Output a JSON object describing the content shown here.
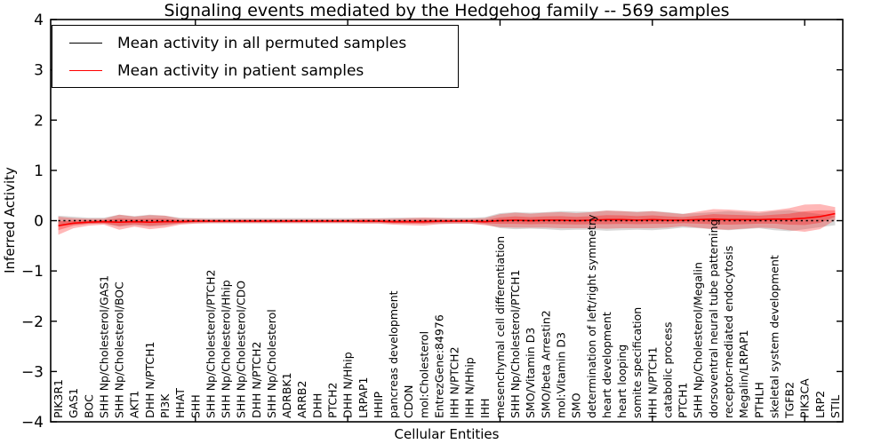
{
  "chart_data": {
    "type": "line",
    "title": "Signaling events mediated by the Hedgehog family -- 569 samples",
    "xlabel": "Cellular Entities",
    "ylabel": "Inferred Activity",
    "ylim": [
      -4,
      4
    ],
    "yticks": [
      -4,
      -3,
      -2,
      -1,
      0,
      1,
      2,
      3,
      4
    ],
    "x_major_tick_indices": [
      9,
      19,
      29,
      39,
      49
    ],
    "grid": false,
    "legend_position": "upper left",
    "categories": [
      "PIK3R1",
      "GAS1",
      "BOC",
      "SHH Np/Cholesterol/GAS1",
      "SHH Np/Cholesterol/BOC",
      "AKT1",
      "DHH N/PTCH1",
      "PI3K",
      "HHAT",
      "SHH",
      "SHH Np/Cholesterol/PTCH2",
      "SHH Np/Cholesterol/Hhip",
      "SHH Np/Cholesterol/CDO",
      "DHH N/PTCH2",
      "SHH Np/Cholesterol",
      "ADRBK1",
      "ARRB2",
      "DHH",
      "PTCH2",
      "DHH N/Hhip",
      "LRPAP1",
      "HHIP",
      "pancreas development",
      "CDON",
      "mol:Cholesterol",
      "EntrezGene:84976",
      "IHH N/PTCH2",
      "IHH N/Hhip",
      "IHH",
      "mesenchymal cell differentiation",
      "SHH Np/Cholesterol/PTCH1",
      "SMO/Vitamin D3",
      "SMO/beta Arrestin2",
      "mol:Vitamin D3",
      "SMO",
      "determination of left/right symmetry",
      "heart development",
      "heart looping",
      "somite specification",
      "IHH N/PTCH1",
      "catabolic process",
      "PTCH1",
      "SHH Np/Cholesterol/Megalin",
      "dorsoventral neural tube patterning",
      "receptor-mediated endocytosis",
      "Megalin/LRPAP1",
      "PTHLH",
      "skeletal system development",
      "TGFB2",
      "PIK3CA",
      "LRP2",
      "STIL"
    ],
    "series": [
      {
        "name": "Mean activity in all permuted samples",
        "color": "#000000",
        "band_color": "#999999",
        "values": [
          0,
          0,
          0,
          0,
          0,
          0,
          0,
          0,
          0,
          0,
          0,
          0,
          0,
          0,
          0,
          0,
          0,
          0,
          0,
          0,
          0,
          0,
          0,
          0,
          0,
          0,
          0,
          0,
          0,
          0,
          0,
          0,
          0,
          0,
          0,
          0,
          0,
          0,
          0,
          0,
          0,
          0,
          0,
          0,
          0,
          0,
          0,
          0,
          0,
          0,
          0,
          0
        ],
        "band": [
          0.1,
          0.08,
          0.06,
          0.06,
          0.12,
          0.09,
          0.12,
          0.1,
          0.06,
          0.05,
          0.05,
          0.05,
          0.05,
          0.05,
          0.05,
          0.05,
          0.05,
          0.05,
          0.05,
          0.05,
          0.05,
          0.05,
          0.06,
          0.06,
          0.06,
          0.06,
          0.06,
          0.06,
          0.07,
          0.15,
          0.17,
          0.16,
          0.17,
          0.19,
          0.18,
          0.18,
          0.2,
          0.19,
          0.18,
          0.19,
          0.17,
          0.14,
          0.15,
          0.17,
          0.19,
          0.17,
          0.15,
          0.19,
          0.21,
          0.17,
          0.13,
          0.09
        ]
      },
      {
        "name": "Mean activity in patient samples",
        "color": "#ff0000",
        "band_color": "#ff0000",
        "values": [
          -0.1,
          -0.05,
          -0.03,
          -0.02,
          -0.03,
          -0.02,
          -0.03,
          -0.02,
          -0.02,
          -0.01,
          -0.01,
          -0.01,
          -0.01,
          -0.01,
          -0.01,
          -0.01,
          -0.01,
          -0.01,
          -0.01,
          -0.01,
          -0.01,
          -0.01,
          -0.02,
          -0.02,
          -0.02,
          -0.01,
          -0.01,
          -0.01,
          -0.02,
          0.0,
          0.01,
          0.0,
          0.01,
          0.01,
          0.0,
          0.01,
          0.02,
          0.02,
          0.01,
          0.02,
          0.01,
          0.01,
          0.02,
          0.03,
          0.02,
          0.02,
          0.02,
          0.03,
          0.03,
          0.05,
          0.08,
          0.14
        ],
        "band": [
          0.18,
          0.1,
          0.07,
          0.06,
          0.15,
          0.1,
          0.14,
          0.12,
          0.06,
          0.05,
          0.04,
          0.04,
          0.04,
          0.04,
          0.04,
          0.04,
          0.04,
          0.04,
          0.04,
          0.04,
          0.05,
          0.05,
          0.06,
          0.07,
          0.08,
          0.06,
          0.05,
          0.05,
          0.07,
          0.13,
          0.15,
          0.14,
          0.15,
          0.16,
          0.15,
          0.16,
          0.18,
          0.17,
          0.16,
          0.17,
          0.15,
          0.12,
          0.16,
          0.2,
          0.2,
          0.18,
          0.16,
          0.18,
          0.22,
          0.27,
          0.25,
          0.13
        ]
      }
    ]
  }
}
